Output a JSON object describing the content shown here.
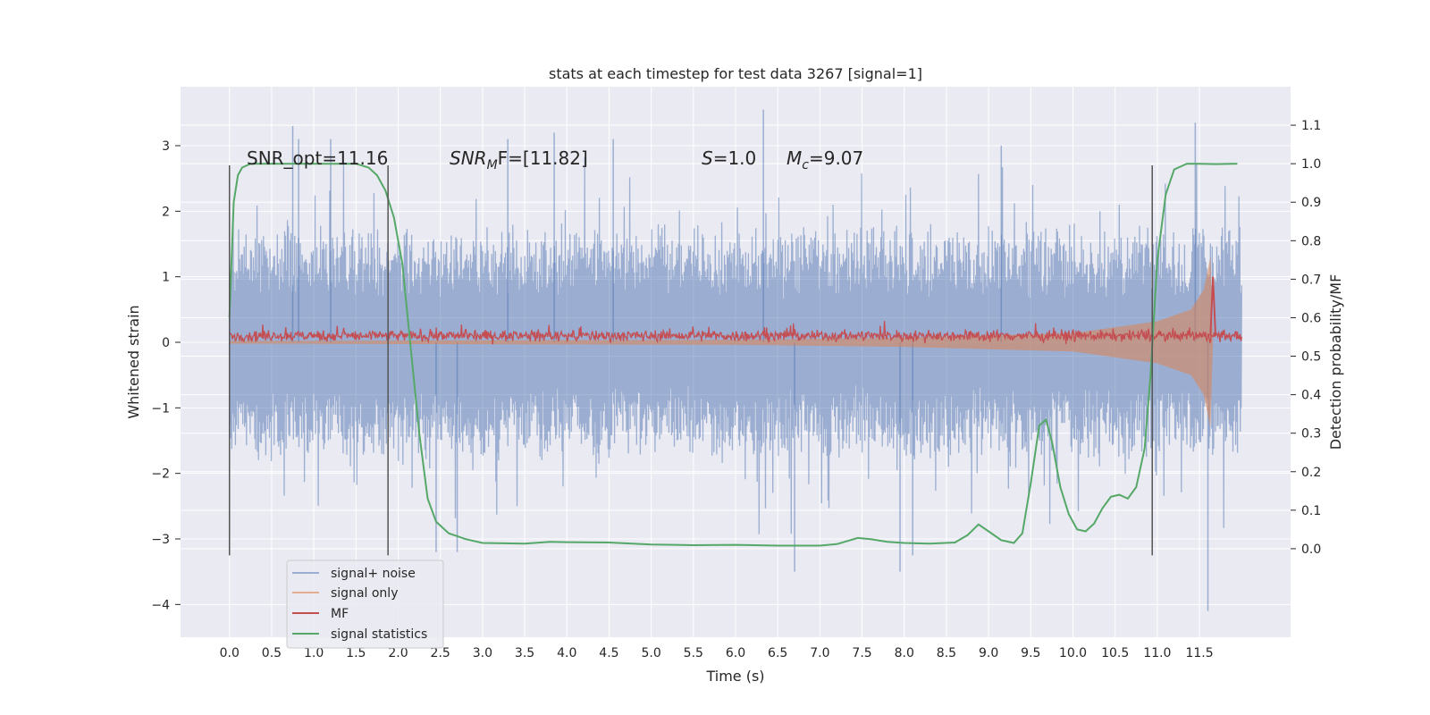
{
  "chart_data": {
    "type": "line",
    "title": "stats at each timestep for test data 3267 [signal=1]",
    "xlabel": "Time (s)",
    "ylabel": "Whitened strain",
    "y2label": "Detection probability/MF",
    "xlim": [
      -0.58,
      12.58
    ],
    "ylim": [
      -4.5,
      3.9
    ],
    "y2lim": [
      -0.23,
      1.2
    ],
    "xticks": [
      0.0,
      0.5,
      1.0,
      1.5,
      2.0,
      2.5,
      3.0,
      3.5,
      4.0,
      4.5,
      5.0,
      5.5,
      6.0,
      6.5,
      7.0,
      7.5,
      8.0,
      8.5,
      9.0,
      9.5,
      10.0,
      10.5,
      11.0,
      11.5
    ],
    "xtick_labels": [
      "0.0",
      "0.5",
      "1.0",
      "1.5",
      "2.0",
      "2.5",
      "3.0",
      "3.5",
      "4.0",
      "4.5",
      "5.0",
      "5.5",
      "6.0",
      "6.5",
      "7.0",
      "7.5",
      "8.0",
      "8.5",
      "9.0",
      "9.5",
      "10.0",
      "10.5",
      "11.0",
      "11.5"
    ],
    "yticks": [
      -4,
      -3,
      -2,
      -1,
      0,
      1,
      2,
      3
    ],
    "ytick_labels": [
      "−4",
      "−3",
      "−2",
      "−1",
      "0",
      "1",
      "2",
      "3"
    ],
    "y2ticks": [
      0.0,
      0.1,
      0.2,
      0.3,
      0.4,
      0.5,
      0.6,
      0.7,
      0.8,
      0.9,
      1.0,
      1.1
    ],
    "y2tick_labels": [
      "0.0",
      "0.1",
      "0.2",
      "0.3",
      "0.4",
      "0.5",
      "0.6",
      "0.7",
      "0.8",
      "0.9",
      "1.0",
      "1.1"
    ],
    "grid": true,
    "legend_position": "lower-left",
    "annotations": {
      "snr_opt": "SNR_opt=11.16",
      "snr_mf_label": "SNR",
      "snr_mf_sub": "M",
      "snr_mf_rest": "F=[11.82]",
      "s_label": "S",
      "s_rest": "=1.0",
      "mc_label": "M",
      "mc_sub": "c",
      "mc_rest": "=9.07"
    },
    "vlines": [
      0.0,
      1.88,
      10.94
    ],
    "vline_range": [
      -3.25,
      2.7
    ],
    "series": [
      {
        "name": "signal+ noise",
        "color": "#4c72b0",
        "axis": "left",
        "x_range": [
          0.0,
          12.0
        ],
        "typical_abs": 1.5,
        "peak_values": [
          {
            "x": 0.75,
            "y": 3.3
          },
          {
            "x": 0.82,
            "y": 3.1
          },
          {
            "x": 1.2,
            "y": 3.1
          },
          {
            "x": 3.3,
            "y": 3.1
          },
          {
            "x": 3.85,
            "y": 3.2
          },
          {
            "x": 4.55,
            "y": 3.1
          },
          {
            "x": 6.33,
            "y": 3.55
          },
          {
            "x": 9.15,
            "y": 3.0
          },
          {
            "x": 11.45,
            "y": 3.35
          },
          {
            "x": 6.7,
            "y": -3.5
          },
          {
            "x": 7.95,
            "y": -3.5
          },
          {
            "x": 11.6,
            "y": -4.1
          },
          {
            "x": 2.45,
            "y": -3.2
          },
          {
            "x": 2.7,
            "y": -3.2
          },
          {
            "x": 8.1,
            "y": -3.25
          }
        ]
      },
      {
        "name": "signal only",
        "color": "#dd8452",
        "axis": "left",
        "envelope": [
          [
            0.0,
            0.02
          ],
          [
            6.0,
            0.04
          ],
          [
            8.0,
            0.07
          ],
          [
            10.0,
            0.14
          ],
          [
            11.0,
            0.32
          ],
          [
            11.4,
            0.5
          ],
          [
            11.55,
            0.8
          ],
          [
            11.63,
            1.3
          ],
          [
            11.66,
            0.0
          ]
        ]
      },
      {
        "name": "MF",
        "color": "#c44e52",
        "axis": "left",
        "x_range": [
          0.0,
          12.0
        ],
        "baseline": 0.1,
        "spread": 0.12,
        "peaks": [
          {
            "x": 11.66,
            "y": 1.0
          }
        ]
      },
      {
        "name": "signal statistics",
        "color": "#55a868",
        "axis": "right",
        "x": [
          0.0,
          0.05,
          0.1,
          0.15,
          0.25,
          0.5,
          1.0,
          1.5,
          1.65,
          1.75,
          1.85,
          1.95,
          2.05,
          2.15,
          2.25,
          2.35,
          2.45,
          2.6,
          2.8,
          3.0,
          3.5,
          3.8,
          4.0,
          4.5,
          5.0,
          5.5,
          6.0,
          6.5,
          7.0,
          7.2,
          7.45,
          7.6,
          7.8,
          8.0,
          8.3,
          8.6,
          8.75,
          8.88,
          9.0,
          9.15,
          9.3,
          9.4,
          9.5,
          9.6,
          9.68,
          9.75,
          9.85,
          9.95,
          10.05,
          10.15,
          10.25,
          10.35,
          10.45,
          10.55,
          10.65,
          10.75,
          10.85,
          10.92,
          11.0,
          11.1,
          11.2,
          11.35,
          11.5,
          11.7,
          11.9,
          11.95
        ],
        "y": [
          0.6,
          0.9,
          0.97,
          0.99,
          1.0,
          1.0,
          1.0,
          1.0,
          0.99,
          0.97,
          0.93,
          0.86,
          0.74,
          0.52,
          0.3,
          0.13,
          0.07,
          0.04,
          0.025,
          0.015,
          0.013,
          0.018,
          0.017,
          0.016,
          0.011,
          0.009,
          0.01,
          0.008,
          0.008,
          0.012,
          0.028,
          0.025,
          0.018,
          0.015,
          0.013,
          0.016,
          0.035,
          0.063,
          0.045,
          0.022,
          0.015,
          0.04,
          0.17,
          0.32,
          0.335,
          0.28,
          0.16,
          0.09,
          0.05,
          0.045,
          0.065,
          0.105,
          0.135,
          0.14,
          0.13,
          0.16,
          0.26,
          0.45,
          0.75,
          0.92,
          0.985,
          1.0,
          1.0,
          0.999,
          1.0,
          1.0
        ]
      }
    ]
  }
}
